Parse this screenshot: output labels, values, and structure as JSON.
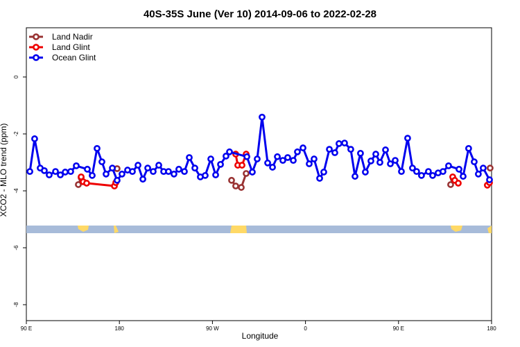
{
  "chart_data": {
    "type": "line",
    "title": "40S-35S June (Ver 10)   2014-09-06 to 2022-02-28",
    "x_label": "Longitude",
    "y_label": "XCO2 - MLO trend (ppm)",
    "xlim": [
      90,
      540
    ],
    "ylim": [
      -8.56,
      1.73
    ],
    "xticks": [
      {
        "value": 90,
        "label": "90 E"
      },
      180,
      {
        "value": 270,
        "label": "90 W"
      },
      {
        "value": 360,
        "label": "0"
      },
      {
        "value": 450,
        "label": "90 E"
      },
      {
        "value": 540,
        "label": "180"
      }
    ],
    "yticks": [
      0,
      -2,
      -4,
      -6,
      -8
    ],
    "grid": false,
    "legend": "top-left",
    "series": [
      {
        "name": "Land Nadir",
        "color": "#993333",
        "x": [
          140.3,
          143.0,
          null,
          177.8,
          null,
          288.5,
          292.5,
          297.9,
          302.6,
          null,
          500.4,
          503.1,
          null,
          538.6
        ],
        "values": [
          -3.78,
          -3.54,
          null,
          -3.22,
          null,
          -3.63,
          -3.83,
          -3.88,
          -3.39,
          null,
          -3.78,
          -3.59,
          null,
          -3.2
        ]
      },
      {
        "name": "Land Glint",
        "color": "#ee0000",
        "x": [
          143.0,
          145.0,
          148.3,
          175.2,
          176.5,
          null,
          292.5,
          294.5,
          298.6,
          302.6,
          null,
          502.4,
          504.4,
          507.8,
          null,
          535.9,
          538.0
        ],
        "values": [
          -3.51,
          -3.68,
          -3.73,
          -3.83,
          -3.71,
          null,
          -2.71,
          -3.1,
          -3.1,
          -2.71,
          null,
          -3.51,
          -3.63,
          -3.73,
          null,
          -3.8,
          -3.71
        ]
      },
      {
        "name": "Ocean Glint",
        "color": "#0000ee",
        "x": [
          93.4,
          98.0,
          103.4,
          107.4,
          112.1,
          118.2,
          122.9,
          127.6,
          132.9,
          138.3,
          149.0,
          153.7,
          158.4,
          163.1,
          167.1,
          173.2,
          177.8,
          182.5,
          187.9,
          192.6,
          198.0,
          202.7,
          207.4,
          212.7,
          218.1,
          222.8,
          227.5,
          232.8,
          237.5,
          242.9,
          247.6,
          253.0,
          258.3,
          263.0,
          268.4,
          273.1,
          277.8,
          283.1,
          286.5,
          303.3,
          308.6,
          313.3,
          318.0,
          323.4,
          328.1,
          332.8,
          338.1,
          342.8,
          348.2,
          352.2,
          357.6,
          363.6,
          368.3,
          373.7,
          377.7,
          383.1,
          388.4,
          392.4,
          397.8,
          403.8,
          407.9,
          413.2,
          417.9,
          423.3,
          428.0,
          432.0,
          437.4,
          442.1,
          446.8,
          452.8,
          458.8,
          463.5,
          467.5,
          472.2,
          478.9,
          483.0,
          488.3,
          493.0,
          498.4,
          508.5,
          512.5,
          517.8,
          523.2,
          527.2,
          531.9,
          538.0
        ],
        "values": [
          -3.32,
          -2.17,
          -3.2,
          -3.29,
          -3.44,
          -3.32,
          -3.44,
          -3.34,
          -3.32,
          -3.12,
          -3.24,
          -3.46,
          -2.51,
          -2.98,
          -3.41,
          -3.2,
          -3.63,
          -3.41,
          -3.27,
          -3.32,
          -3.1,
          -3.59,
          -3.2,
          -3.32,
          -3.1,
          -3.32,
          -3.32,
          -3.41,
          -3.24,
          -3.32,
          -2.83,
          -3.2,
          -3.51,
          -3.46,
          -2.88,
          -3.44,
          -3.07,
          -2.78,
          -2.63,
          -2.8,
          -3.34,
          -2.88,
          -1.41,
          -3.02,
          -3.17,
          -2.8,
          -2.93,
          -2.83,
          -2.93,
          -2.63,
          -2.49,
          -3.05,
          -2.88,
          -3.56,
          -3.34,
          -2.54,
          -2.66,
          -2.34,
          -2.32,
          -2.54,
          -3.49,
          -2.68,
          -3.34,
          -2.95,
          -2.71,
          -3.0,
          -2.56,
          -3.05,
          -2.93,
          -3.32,
          -2.15,
          -3.2,
          -3.32,
          -3.46,
          -3.32,
          -3.46,
          -3.37,
          -3.32,
          -3.12,
          -3.24,
          -3.49,
          -2.51,
          -2.98,
          -3.41,
          -3.2,
          -3.61
        ]
      }
    ]
  }
}
